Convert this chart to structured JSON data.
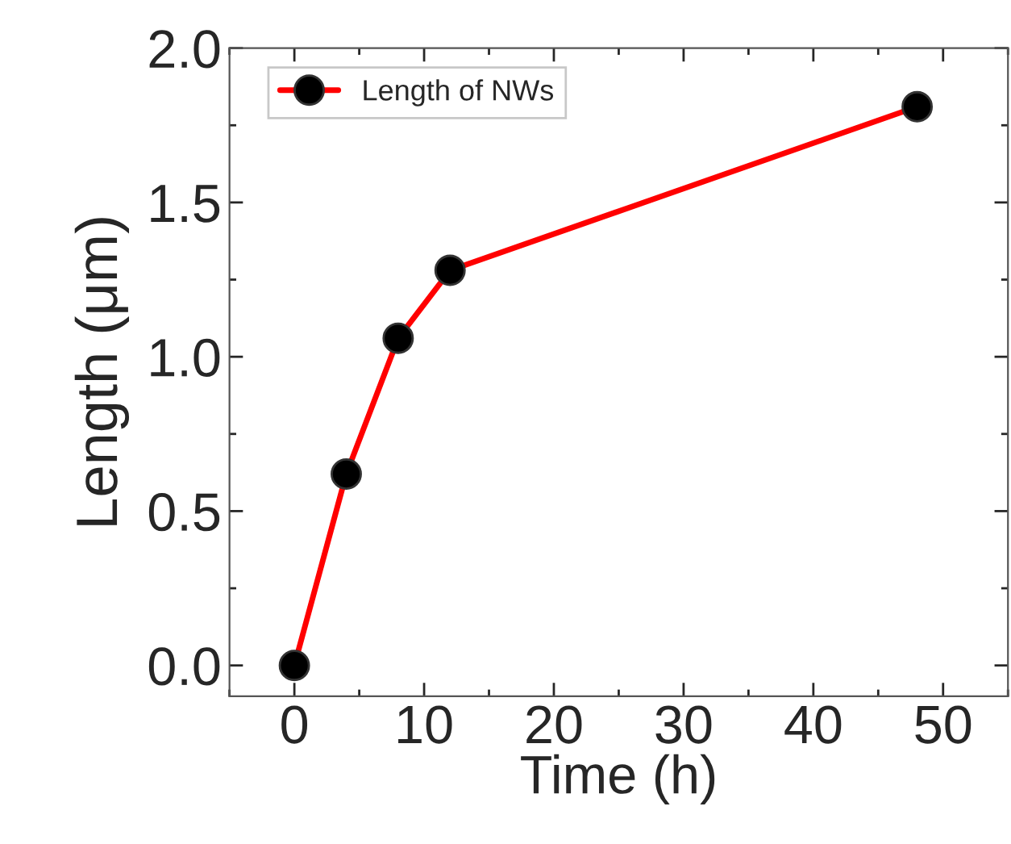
{
  "chart_data": {
    "type": "line",
    "xlabel": "Time (h)",
    "ylabel": "Length (μm)",
    "x": [
      0,
      4,
      8,
      12,
      48
    ],
    "series": [
      {
        "name": "Length of NWs",
        "color": "#ff0000",
        "values": [
          0.0,
          0.62,
          1.06,
          1.28,
          1.81
        ]
      }
    ],
    "xlim": [
      -5,
      55
    ],
    "ylim": [
      -0.1,
      2.0
    ],
    "xticks": [
      0,
      10,
      20,
      30,
      40,
      50
    ],
    "yticks": [
      {
        "value": 0,
        "label": "0.0"
      },
      0.5,
      {
        "value": 1,
        "label": "1.0"
      },
      1.5,
      {
        "value": 2,
        "label": "2.0"
      }
    ],
    "marker": "circle",
    "line_style": "solid",
    "legend": "top left",
    "grid": false
  }
}
